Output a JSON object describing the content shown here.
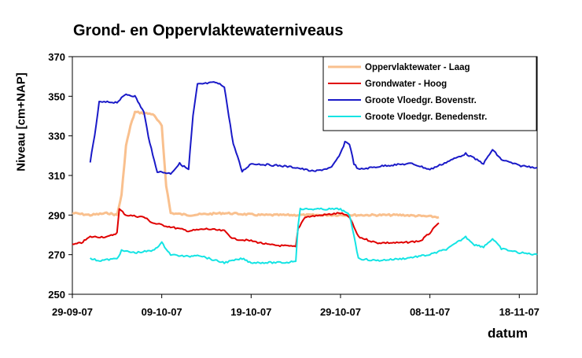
{
  "chart_data": {
    "type": "line",
    "title": "Grond- en Oppervlaktewaterniveaus",
    "xlabel": "datum",
    "ylabel": "Niveau [cm+NAP]",
    "ylim": [
      250,
      370
    ],
    "yticks": [
      250,
      270,
      290,
      310,
      330,
      350,
      370
    ],
    "xlim": [
      "2007-09-29",
      "2007-11-20"
    ],
    "xticks": [
      {
        "date": "2007-09-29",
        "label": "29-09-07"
      },
      {
        "date": "2007-10-09",
        "label": "09-10-07"
      },
      {
        "date": "2007-10-19",
        "label": "19-10-07"
      },
      {
        "date": "2007-10-29",
        "label": "29-10-07"
      },
      {
        "date": "2007-11-08",
        "label": "08-11-07"
      },
      {
        "date": "2007-11-18",
        "label": "18-11-07"
      }
    ],
    "grid": false,
    "legend": "top-right",
    "series": [
      {
        "name": "Oppervlaktewater - Laag",
        "color": "#f9c08e",
        "points": [
          [
            "2007-09-29",
            291
          ],
          [
            "2007-10-01",
            290
          ],
          [
            "2007-10-03",
            291
          ],
          [
            "2007-10-04",
            290
          ],
          [
            "2007-10-04T12",
            300
          ],
          [
            "2007-10-05",
            325
          ],
          [
            "2007-10-05T12",
            335
          ],
          [
            "2007-10-06",
            342
          ],
          [
            "2007-10-08",
            341
          ],
          [
            "2007-10-09",
            335
          ],
          [
            "2007-10-09T12",
            305
          ],
          [
            "2007-10-10",
            291
          ],
          [
            "2007-10-12",
            290
          ],
          [
            "2007-10-16",
            291
          ],
          [
            "2007-10-20",
            290
          ],
          [
            "2007-10-24",
            290
          ],
          [
            "2007-10-28",
            290
          ],
          [
            "2007-11-01",
            290
          ],
          [
            "2007-11-05",
            290
          ],
          [
            "2007-11-09",
            289
          ]
        ]
      },
      {
        "name": "Grondwater - Hoog",
        "color": "#e00000",
        "points": [
          [
            "2007-09-29",
            275
          ],
          [
            "2007-09-30",
            276
          ],
          [
            "2007-10-01",
            279
          ],
          [
            "2007-10-03",
            279
          ],
          [
            "2007-10-04",
            281
          ],
          [
            "2007-10-04T06",
            293
          ],
          [
            "2007-10-05",
            290
          ],
          [
            "2007-10-07",
            289
          ],
          [
            "2007-10-08",
            286
          ],
          [
            "2007-10-10",
            284
          ],
          [
            "2007-10-12",
            282
          ],
          [
            "2007-10-14",
            283
          ],
          [
            "2007-10-16",
            282
          ],
          [
            "2007-10-17",
            278
          ],
          [
            "2007-10-19",
            277
          ],
          [
            "2007-10-21",
            275
          ],
          [
            "2007-10-24",
            274
          ],
          [
            "2007-10-24T06",
            283
          ],
          [
            "2007-10-25",
            289
          ],
          [
            "2007-10-27",
            290
          ],
          [
            "2007-10-29",
            291
          ],
          [
            "2007-10-30",
            289
          ],
          [
            "2007-10-31",
            279
          ],
          [
            "2007-11-02",
            276
          ],
          [
            "2007-11-05",
            276
          ],
          [
            "2007-11-07",
            277
          ],
          [
            "2007-11-08",
            281
          ],
          [
            "2007-11-09",
            286
          ]
        ]
      },
      {
        "name": "Groote Vloedgr. Bovenstr.",
        "color": "#1a1ac8",
        "points": [
          [
            "2007-10-01",
            317
          ],
          [
            "2007-10-01T12",
            330
          ],
          [
            "2007-10-02",
            347
          ],
          [
            "2007-10-04",
            347
          ],
          [
            "2007-10-05",
            351
          ],
          [
            "2007-10-06",
            350
          ],
          [
            "2007-10-07",
            342
          ],
          [
            "2007-10-07T12",
            330
          ],
          [
            "2007-10-08",
            320
          ],
          [
            "2007-10-08T12",
            312
          ],
          [
            "2007-10-10",
            311
          ],
          [
            "2007-10-11",
            316
          ],
          [
            "2007-10-12",
            313
          ],
          [
            "2007-10-12T12",
            340
          ],
          [
            "2007-10-13",
            356
          ],
          [
            "2007-10-15",
            357
          ],
          [
            "2007-10-16",
            355
          ],
          [
            "2007-10-16T12",
            340
          ],
          [
            "2007-10-17",
            326
          ],
          [
            "2007-10-18",
            312
          ],
          [
            "2007-10-19",
            316
          ],
          [
            "2007-10-22",
            315
          ],
          [
            "2007-10-24",
            314
          ],
          [
            "2007-10-26",
            312
          ],
          [
            "2007-10-28",
            314
          ],
          [
            "2007-10-29",
            321
          ],
          [
            "2007-10-29T12",
            327
          ],
          [
            "2007-10-30",
            326
          ],
          [
            "2007-10-30T12",
            316
          ],
          [
            "2007-10-31",
            313
          ],
          [
            "2007-11-03",
            315
          ],
          [
            "2007-11-06",
            316
          ],
          [
            "2007-11-08",
            313
          ],
          [
            "2007-11-10",
            317
          ],
          [
            "2007-11-12",
            321
          ],
          [
            "2007-11-14",
            316
          ],
          [
            "2007-11-15",
            323
          ],
          [
            "2007-11-16",
            318
          ],
          [
            "2007-11-18",
            315
          ],
          [
            "2007-11-20",
            314
          ]
        ]
      },
      {
        "name": "Groote Vloedgr. Benedenstr.",
        "color": "#14e4e4",
        "points": [
          [
            "2007-10-01",
            268
          ],
          [
            "2007-10-02",
            267
          ],
          [
            "2007-10-04",
            268
          ],
          [
            "2007-10-04T12",
            272
          ],
          [
            "2007-10-06",
            271
          ],
          [
            "2007-10-08",
            272
          ],
          [
            "2007-10-09",
            276
          ],
          [
            "2007-10-10",
            270
          ],
          [
            "2007-10-12",
            269
          ],
          [
            "2007-10-13",
            270
          ],
          [
            "2007-10-15",
            267
          ],
          [
            "2007-10-16",
            266
          ],
          [
            "2007-10-18",
            268
          ],
          [
            "2007-10-19",
            266
          ],
          [
            "2007-10-21",
            266
          ],
          [
            "2007-10-23",
            266
          ],
          [
            "2007-10-24",
            267
          ],
          [
            "2007-10-24T06",
            285
          ],
          [
            "2007-10-24T12",
            293
          ],
          [
            "2007-10-27",
            293
          ],
          [
            "2007-10-29",
            293
          ],
          [
            "2007-10-30",
            290
          ],
          [
            "2007-10-30T12",
            280
          ],
          [
            "2007-10-31",
            268
          ],
          [
            "2007-11-02",
            267
          ],
          [
            "2007-11-05",
            268
          ],
          [
            "2007-11-08",
            270
          ],
          [
            "2007-11-10",
            273
          ],
          [
            "2007-11-12",
            279
          ],
          [
            "2007-11-13",
            275
          ],
          [
            "2007-11-14",
            274
          ],
          [
            "2007-11-15",
            278
          ],
          [
            "2007-11-16",
            273
          ],
          [
            "2007-11-18",
            271
          ],
          [
            "2007-11-20",
            270
          ]
        ]
      }
    ]
  }
}
